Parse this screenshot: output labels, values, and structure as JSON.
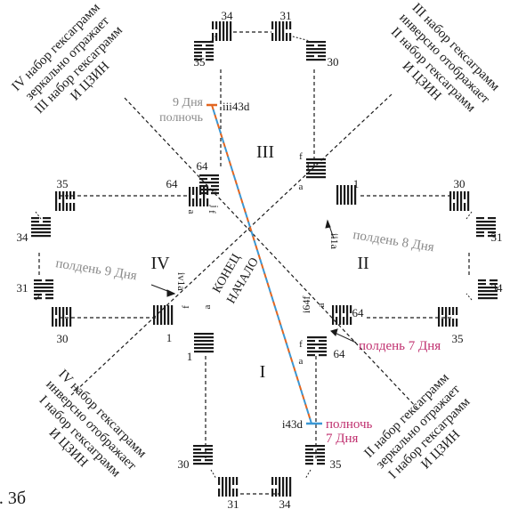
{
  "regions": {
    "r1": "I",
    "r2": "II",
    "r3": "III",
    "r4": "IV"
  },
  "corner_notes": {
    "top_left": [
      "IV набор гексаграмм",
      "зеркально отражает",
      "III набор гексаграмм",
      "И ЦЗИН"
    ],
    "top_right": [
      "III набор гексаграмм",
      "инверсно отображает",
      "II набор гексаграмм",
      "И ЦЗИН"
    ],
    "bottom_left": [
      "IV набор гексаграмм",
      "инверсно отображает",
      "I набор гексаграмм",
      "И ЦЗИН"
    ],
    "bottom_right": [
      "II набор гексаграмм",
      "зеркально отражает",
      "I набор гексаграмм",
      "И ЦЗИН"
    ]
  },
  "numbers": {
    "top_34": "34",
    "top_31": "31",
    "tl_35": "35",
    "tr_30": "30",
    "ul_64": "64",
    "ul_64b": "64",
    "ur_1": "1",
    "ur_1b": "1",
    "l_35": "35",
    "l_34": "34",
    "l_31": "31",
    "l_30": "30",
    "r_30": "30",
    "r_31": "31",
    "r_34": "34",
    "r_35": "35",
    "ll_1": "1",
    "ll_1b": "1",
    "lr_64": "64",
    "lr_64b": "64",
    "bl_30": "30",
    "br_35": "35",
    "bot_31": "31",
    "bot_34": "34"
  },
  "markers": {
    "iii43d": "iii43d",
    "i43d": "i43d",
    "ii1a": "ii1a",
    "iv1a": "iv1a",
    "i64f": "i64f"
  },
  "lines": {
    "f": "f",
    "a": "a",
    "j": "j"
  },
  "annotations": {
    "day9_label": "9 Дня",
    "midnight_top": "полночь",
    "noon8": "полдень 8 Дня",
    "noon9": "полдень 9 Дня",
    "noon7": "полдень 7 Дня",
    "midnight_bottom_1": "полночь",
    "midnight_bottom_2": "7 Дня",
    "end": "КОНЕЦ",
    "start": "НАЧАЛО"
  },
  "caption": "с. 3б",
  "colors": {
    "ink": "#1a1a1a",
    "gray": "#8a8a8a",
    "magenta": "#c0306f",
    "orange": "#e2651f",
    "blue": "#3a97d4"
  }
}
